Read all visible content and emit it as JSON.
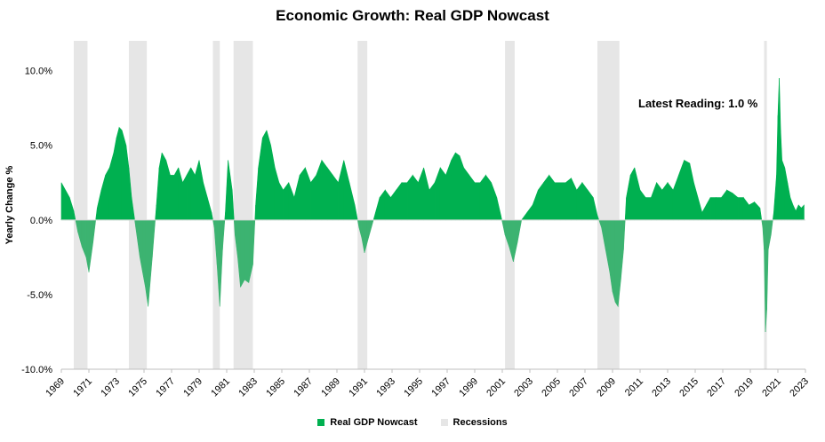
{
  "chart_data": {
    "type": "area",
    "title": "Economic Growth: Real GDP Nowcast",
    "ylabel": "Yearly Change %",
    "xlim": [
      1969.0,
      2023.0
    ],
    "ylim": [
      -10,
      12
    ],
    "y_ticks": [
      10,
      5,
      0,
      -5,
      -10
    ],
    "y_tick_labels": [
      "10.0%",
      "5.0%",
      "0.0%",
      "-5.0%",
      "-10.0%"
    ],
    "x_tick_labels": [
      "1969",
      "1971",
      "1973",
      "1975",
      "1977",
      "1979",
      "1981",
      "1983",
      "1985",
      "1987",
      "1989",
      "1991",
      "1993",
      "1995",
      "1997",
      "1999",
      "2001",
      "2003",
      "2005",
      "2007",
      "2009",
      "2011",
      "2013",
      "2015",
      "2017",
      "2019",
      "2021",
      "2023"
    ],
    "annotation": "Latest Reading: 1.0 %",
    "grid": false,
    "legend_position": "bottom",
    "colors": {
      "positive": "#00b050",
      "negative": "#3cb371",
      "recession": "#e6e6e6"
    },
    "series": [
      {
        "name": "Real GDP Nowcast",
        "x": [
          1969.0,
          1969.3,
          1969.6,
          1969.9,
          1970.2,
          1970.5,
          1970.8,
          1971.0,
          1971.3,
          1971.6,
          1971.9,
          1972.2,
          1972.5,
          1972.8,
          1973.0,
          1973.2,
          1973.4,
          1973.7,
          1973.9,
          1974.1,
          1974.4,
          1974.7,
          1974.9,
          1975.1,
          1975.3,
          1975.6,
          1975.9,
          1976.1,
          1976.3,
          1976.6,
          1976.9,
          1977.2,
          1977.5,
          1977.8,
          1978.1,
          1978.4,
          1978.7,
          1979.0,
          1979.3,
          1979.6,
          1979.9,
          1980.1,
          1980.3,
          1980.5,
          1980.7,
          1980.9,
          1981.1,
          1981.4,
          1981.6,
          1981.8,
          1982.0,
          1982.3,
          1982.6,
          1982.9,
          1983.1,
          1983.3,
          1983.6,
          1983.9,
          1984.2,
          1984.5,
          1984.8,
          1985.1,
          1985.5,
          1985.9,
          1986.3,
          1986.7,
          1987.1,
          1987.5,
          1987.9,
          1988.3,
          1988.7,
          1989.1,
          1989.5,
          1989.9,
          1990.3,
          1990.6,
          1990.8,
          1991.0,
          1991.2,
          1991.5,
          1991.8,
          1992.1,
          1992.5,
          1992.9,
          1993.3,
          1993.7,
          1994.1,
          1994.5,
          1994.9,
          1995.3,
          1995.7,
          1996.1,
          1996.5,
          1996.9,
          1997.3,
          1997.6,
          1997.9,
          1998.2,
          1998.6,
          1999.0,
          1999.4,
          1999.8,
          2000.2,
          2000.6,
          2000.9,
          2001.2,
          2001.5,
          2001.8,
          2002.1,
          2002.4,
          2002.8,
          2003.2,
          2003.6,
          2004.0,
          2004.4,
          2004.8,
          2005.2,
          2005.6,
          2006.0,
          2006.4,
          2006.8,
          2007.2,
          2007.6,
          2007.9,
          2008.2,
          2008.5,
          2008.8,
          2009.0,
          2009.2,
          2009.4,
          2009.6,
          2009.8,
          2010.0,
          2010.3,
          2010.6,
          2011.0,
          2011.4,
          2011.8,
          2012.2,
          2012.6,
          2013.0,
          2013.4,
          2013.8,
          2014.2,
          2014.6,
          2014.9,
          2015.2,
          2015.5,
          2015.8,
          2016.1,
          2016.5,
          2016.9,
          2017.3,
          2017.7,
          2018.1,
          2018.5,
          2018.9,
          2019.3,
          2019.7,
          2019.9,
          2020.0,
          2020.1,
          2020.2,
          2020.3,
          2020.5,
          2020.7,
          2020.9,
          2021.0,
          2021.1,
          2021.2,
          2021.3,
          2021.5,
          2021.7,
          2021.9,
          2022.1,
          2022.3,
          2022.5,
          2022.7,
          2022.9
        ],
        "values": [
          2.5,
          2.0,
          1.5,
          0.6,
          -0.8,
          -1.8,
          -2.5,
          -3.5,
          -1.5,
          0.8,
          2.0,
          3.0,
          3.5,
          4.5,
          5.5,
          6.2,
          6.0,
          5.0,
          3.5,
          1.5,
          -0.5,
          -2.5,
          -3.5,
          -4.5,
          -5.8,
          -2.5,
          1.0,
          3.5,
          4.5,
          4.0,
          3.0,
          3.0,
          3.5,
          2.5,
          3.0,
          3.5,
          3.0,
          4.0,
          2.5,
          1.5,
          0.5,
          -0.5,
          -3.0,
          -5.8,
          -2.0,
          0.5,
          4.0,
          2.0,
          -1.0,
          -2.5,
          -4.5,
          -4.0,
          -4.2,
          -3.0,
          1.0,
          3.5,
          5.5,
          6.0,
          5.0,
          3.5,
          2.5,
          2.0,
          2.5,
          1.5,
          3.0,
          3.5,
          2.5,
          3.0,
          4.0,
          3.5,
          3.0,
          2.5,
          4.0,
          2.5,
          1.0,
          -0.5,
          -1.2,
          -2.2,
          -1.5,
          -0.5,
          0.5,
          1.5,
          2.0,
          1.5,
          2.0,
          2.5,
          2.5,
          3.0,
          2.5,
          3.5,
          2.0,
          2.5,
          3.5,
          3.0,
          4.0,
          4.5,
          4.3,
          3.5,
          3.0,
          2.5,
          2.5,
          3.0,
          2.5,
          1.5,
          0.3,
          -1.0,
          -1.8,
          -2.8,
          -1.5,
          0.0,
          0.5,
          1.0,
          2.0,
          2.5,
          3.0,
          2.5,
          2.5,
          2.5,
          2.8,
          2.0,
          2.5,
          2.0,
          1.5,
          0.3,
          -0.5,
          -2.0,
          -3.5,
          -4.8,
          -5.5,
          -5.8,
          -4.0,
          -2.0,
          1.5,
          3.0,
          3.5,
          2.0,
          1.5,
          1.5,
          2.5,
          2.0,
          2.5,
          2.0,
          3.0,
          4.0,
          3.8,
          2.5,
          1.5,
          0.5,
          1.0,
          1.5,
          1.5,
          1.5,
          2.0,
          1.8,
          1.5,
          1.5,
          1.0,
          1.2,
          0.8,
          -0.5,
          -2.0,
          -7.5,
          -6.0,
          -2.0,
          -1.0,
          0.5,
          3.0,
          7.0,
          9.5,
          6.0,
          4.0,
          3.5,
          2.5,
          1.5,
          1.0,
          0.6,
          1.0,
          0.8,
          1.0
        ]
      }
    ],
    "recessions": [
      {
        "name": "Recessions",
        "start": 1969.9,
        "end": 1970.9
      },
      {
        "start": 1973.9,
        "end": 1975.2
      },
      {
        "start": 1980.0,
        "end": 1980.5
      },
      {
        "start": 1981.5,
        "end": 1982.9
      },
      {
        "start": 1990.5,
        "end": 1991.2
      },
      {
        "start": 2001.2,
        "end": 2001.9
      },
      {
        "start": 2007.9,
        "end": 2009.5
      },
      {
        "start": 2020.0,
        "end": 2020.2
      }
    ]
  },
  "legend": {
    "series_label": "Real GDP Nowcast",
    "recession_label": "Recessions"
  }
}
